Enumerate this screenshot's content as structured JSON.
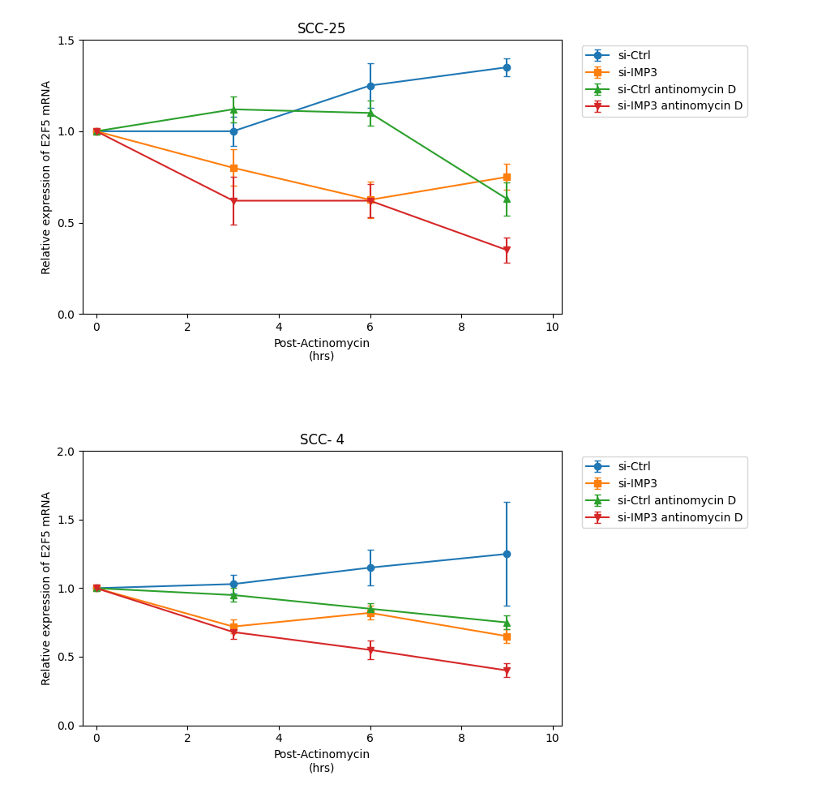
{
  "chart_data": [
    {
      "type": "line",
      "title": "SCC-25",
      "x_label": "Post-Actinomycin\n(hrs)",
      "y_label": "Relative expression of E2F5 mRNA",
      "x": [
        0,
        3,
        6,
        9
      ],
      "xlim": [
        -0.3,
        10.2
      ],
      "xticks": [
        0,
        2,
        4,
        6,
        8,
        10
      ],
      "ylim": [
        0.0,
        1.5
      ],
      "yticks": [
        {
          "value": 0.0,
          "label": "0.0"
        },
        0.5,
        {
          "value": 1.0,
          "label": "1.0"
        },
        1.5
      ],
      "legend": "upper left",
      "series": [
        {
          "name": "si-Ctrl",
          "marker": "circle",
          "values": [
            1.0,
            1.0,
            1.25,
            1.35
          ],
          "errors": [
            0.0,
            0.08,
            0.12,
            0.05
          ]
        },
        {
          "name": "si-IMP3",
          "marker": "square",
          "values": [
            1.0,
            0.8,
            0.625,
            0.75
          ],
          "errors": [
            0.0,
            0.1,
            0.1,
            0.07
          ]
        },
        {
          "name": "si-Ctrl antinomycin D",
          "marker": "triangle_up",
          "values": [
            1.0,
            1.12,
            1.1,
            0.63
          ],
          "errors": [
            0.0,
            0.07,
            0.07,
            0.09
          ]
        },
        {
          "name": "si-IMP3 antinomycin D",
          "marker": "triangle_down",
          "values": [
            1.0,
            0.62,
            0.62,
            0.35
          ],
          "errors": [
            0.0,
            0.13,
            0.09,
            0.07
          ]
        }
      ]
    },
    {
      "type": "line",
      "title": "SCC- 4",
      "x_label": "Post-Actinomycin\n(hrs)",
      "y_label": "Relative expression of E2F5 mRNA",
      "x": [
        0,
        3,
        6,
        9
      ],
      "xlim": [
        -0.3,
        10.2
      ],
      "xticks": [
        0,
        2,
        4,
        6,
        8,
        10
      ],
      "ylim": [
        0.0,
        2.0
      ],
      "yticks": [
        {
          "value": 0.0,
          "label": "0.0"
        },
        0.5,
        {
          "value": 1.0,
          "label": "1.0"
        },
        1.5,
        {
          "value": 2.0,
          "label": "2.0"
        }
      ],
      "legend": "upper left",
      "series": [
        {
          "name": "si-Ctrl",
          "marker": "circle",
          "values": [
            1.0,
            1.03,
            1.15,
            1.25
          ],
          "errors": [
            0.0,
            0.07,
            0.13,
            0.38
          ]
        },
        {
          "name": "si-IMP3",
          "marker": "square",
          "values": [
            1.0,
            0.72,
            0.82,
            0.65
          ],
          "errors": [
            0.0,
            0.05,
            0.05,
            0.05
          ]
        },
        {
          "name": "si-Ctrl antinomycin D",
          "marker": "triangle_up",
          "values": [
            1.0,
            0.95,
            0.85,
            0.75
          ],
          "errors": [
            0.0,
            0.05,
            0.04,
            0.05
          ]
        },
        {
          "name": "si-IMP3 antinomycin D",
          "marker": "triangle_down",
          "values": [
            1.0,
            0.68,
            0.55,
            0.4
          ],
          "errors": [
            0.0,
            0.05,
            0.07,
            0.05
          ]
        }
      ]
    }
  ]
}
